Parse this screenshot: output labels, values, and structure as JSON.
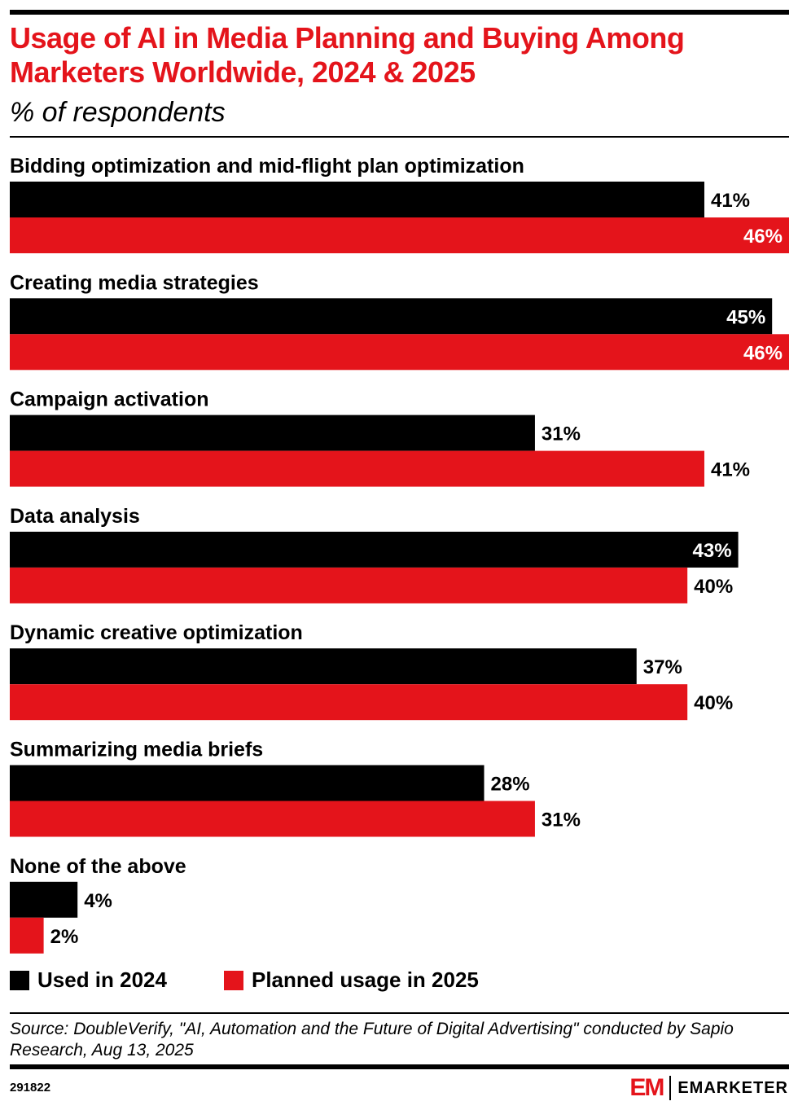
{
  "header": {
    "title": "Usage of AI in Media Planning and Buying Among Marketers Worldwide, 2024 & 2025",
    "subtitle": "% of respondents"
  },
  "chart_data": {
    "type": "bar",
    "orientation": "horizontal",
    "title": "Usage of AI in Media Planning and Buying Among Marketers Worldwide, 2024 & 2025",
    "subtitle": "% of respondents",
    "unit": "%",
    "categories": [
      "Bidding optimization and mid-flight plan optimization",
      "Creating media strategies",
      "Campaign activation",
      "Data analysis",
      "Dynamic creative optimization",
      "Summarizing media briefs",
      "None of the above"
    ],
    "series": [
      {
        "name": "Used in 2024",
        "color": "#000000",
        "values": [
          41,
          45,
          31,
          43,
          37,
          28,
          4
        ]
      },
      {
        "name": "Planned usage in 2025",
        "color": "#e4141b",
        "values": [
          46,
          46,
          41,
          40,
          40,
          31,
          2
        ]
      }
    ],
    "xlim": [
      0,
      46
    ],
    "legend_position": "bottom-left"
  },
  "footer": {
    "source": "Source: DoubleVerify, \"AI, Automation and the Future of Digital Advertising\" conducted by Sapio Research, Aug 13, 2025",
    "chart_id": "291822",
    "brand_mark": "EM",
    "brand_name": "EMARKETER"
  }
}
